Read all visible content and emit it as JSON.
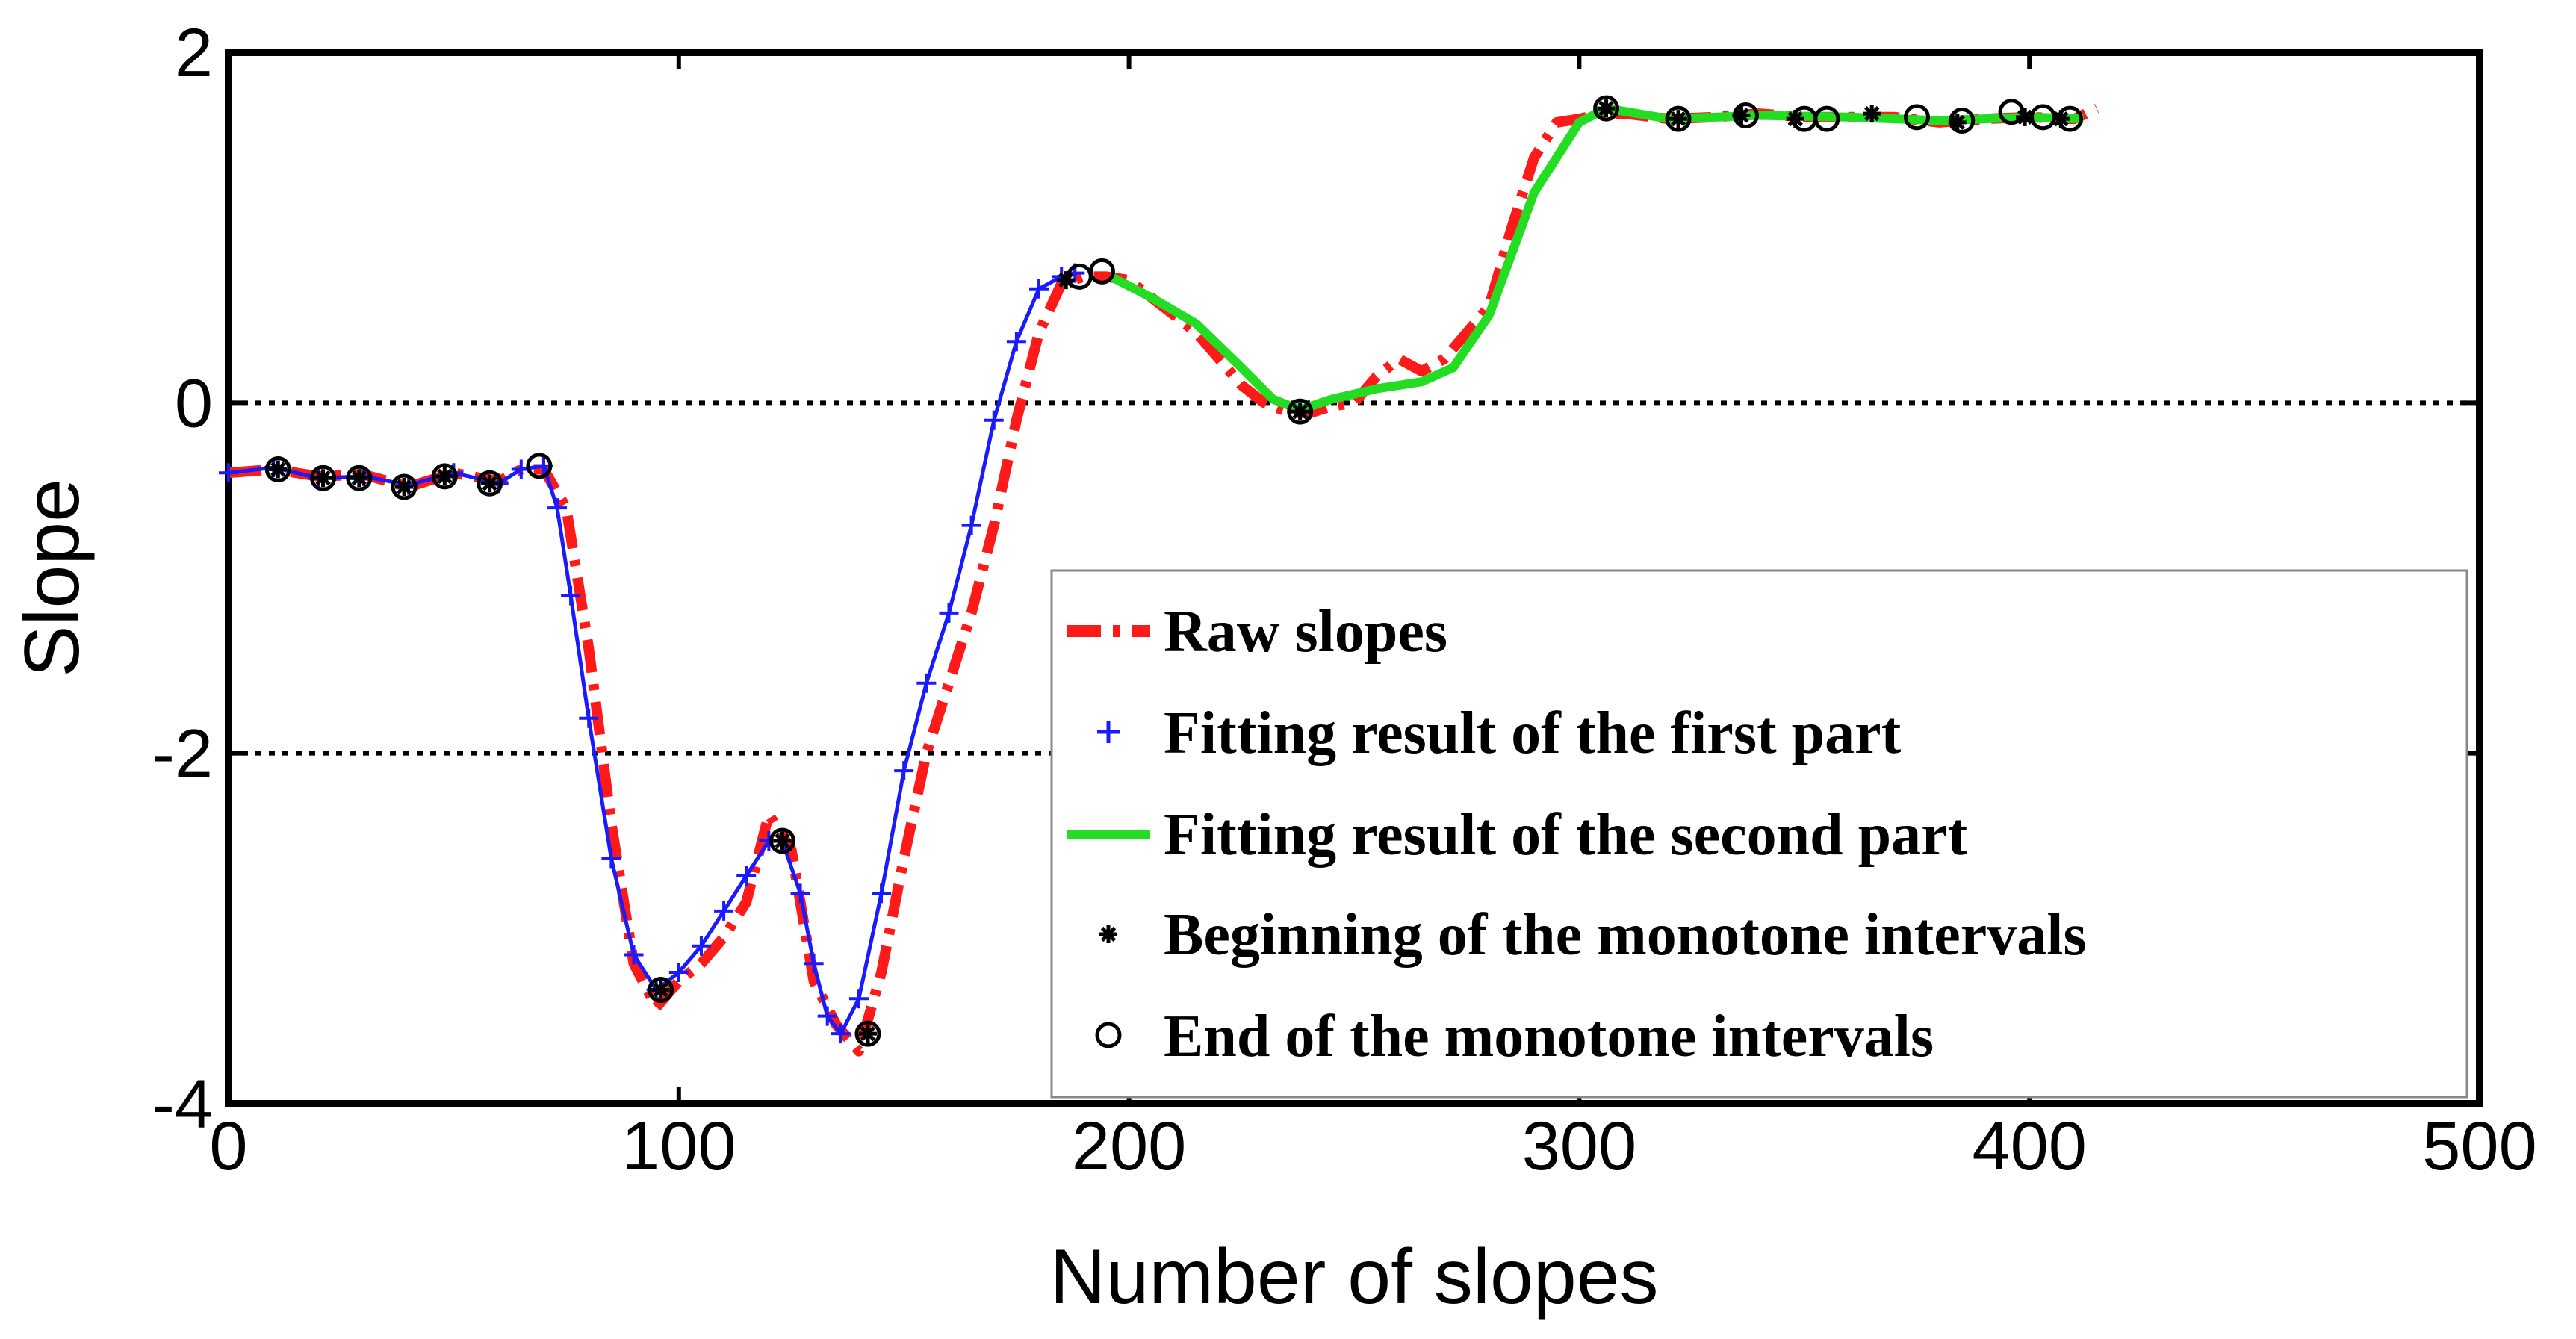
{
  "chart_data": {
    "type": "line",
    "title": "",
    "xlabel": "Number of slopes",
    "ylabel": "Slope",
    "xlim": [
      0,
      500
    ],
    "ylim": [
      -4,
      2
    ],
    "xticks": [
      0,
      100,
      200,
      300,
      400,
      500
    ],
    "xtick_labels": [
      "0",
      "100",
      "200",
      "300",
      "400",
      "500"
    ],
    "yticks": [
      2,
      0,
      -2,
      -4
    ],
    "ytick_labels": [
      "2",
      "0",
      "-2",
      "-4"
    ],
    "reference_lines": [
      0,
      -2
    ],
    "legend_position": "lower-right",
    "colors": {
      "raw": "#ff1a1a",
      "first": "#1a1aff",
      "second": "#22dd22",
      "axis": "#000000"
    },
    "series": [
      {
        "name": "Raw slopes",
        "style": "dash-dot",
        "x": [
          0,
          10,
          20,
          30,
          40,
          50,
          60,
          65,
          70,
          75,
          80,
          85,
          90,
          95,
          100,
          105,
          110,
          115,
          120,
          125,
          130,
          135,
          140,
          145,
          150,
          155,
          160,
          165,
          170,
          175,
          180,
          185,
          190,
          195,
          200,
          205,
          210,
          215,
          220,
          225,
          230,
          235,
          240,
          245,
          250,
          255,
          260,
          265,
          270,
          275,
          280,
          285,
          290,
          295,
          300,
          305,
          310,
          320,
          330,
          340,
          350,
          360,
          370,
          380,
          390,
          400,
          410,
          415
        ],
        "y": [
          -0.4,
          -0.38,
          -0.42,
          -0.41,
          -0.48,
          -0.4,
          -0.45,
          -0.38,
          -0.38,
          -0.6,
          -1.4,
          -2.4,
          -3.2,
          -3.45,
          -3.3,
          -3.2,
          -3.05,
          -2.85,
          -2.35,
          -2.55,
          -3.3,
          -3.55,
          -3.7,
          -3.25,
          -2.6,
          -2.0,
          -1.6,
          -1.2,
          -0.7,
          -0.1,
          0.4,
          0.68,
          0.72,
          0.72,
          0.7,
          0.6,
          0.5,
          0.4,
          0.25,
          0.1,
          0.0,
          -0.05,
          -0.06,
          -0.02,
          0.0,
          0.15,
          0.25,
          0.18,
          0.25,
          0.4,
          0.55,
          1.0,
          1.4,
          1.6,
          1.62,
          1.65,
          1.65,
          1.62,
          1.63,
          1.65,
          1.63,
          1.63,
          1.63,
          1.6,
          1.62,
          1.63,
          1.62,
          1.68
        ]
      },
      {
        "name": "Fitting result of the first part",
        "style": "plus-markers",
        "x": [
          0,
          10,
          20,
          30,
          40,
          50,
          60,
          65,
          70,
          73,
          76,
          80,
          85,
          90,
          95,
          100,
          105,
          110,
          115,
          120,
          123,
          127,
          130,
          133,
          136,
          140,
          145,
          150,
          155,
          160,
          165,
          170,
          175,
          180,
          185,
          188
        ],
        "y": [
          -0.4,
          -0.37,
          -0.43,
          -0.42,
          -0.47,
          -0.4,
          -0.46,
          -0.38,
          -0.36,
          -0.6,
          -1.1,
          -1.8,
          -2.6,
          -3.15,
          -3.35,
          -3.25,
          -3.1,
          -2.9,
          -2.7,
          -2.5,
          -2.5,
          -2.8,
          -3.2,
          -3.5,
          -3.6,
          -3.4,
          -2.8,
          -2.1,
          -1.6,
          -1.2,
          -0.7,
          -0.1,
          0.35,
          0.65,
          0.72,
          0.74
        ]
      },
      {
        "name": "Fitting result of the second part",
        "style": "solid",
        "x": [
          196,
          205,
          215,
          225,
          232,
          238,
          245,
          255,
          265,
          272,
          280,
          290,
          300,
          306,
          320,
          340,
          360,
          380,
          400,
          412
        ],
        "y": [
          0.72,
          0.6,
          0.45,
          0.2,
          0.02,
          -0.04,
          0.02,
          0.08,
          0.12,
          0.2,
          0.5,
          1.2,
          1.6,
          1.68,
          1.62,
          1.64,
          1.63,
          1.61,
          1.63,
          1.62
        ]
      },
      {
        "name": "Beginning of the monotone intervals",
        "style": "star-markers",
        "x": [
          11,
          21,
          29,
          39,
          48,
          58,
          96,
          123,
          142,
          186,
          238,
          306,
          322,
          336,
          348,
          365,
          384,
          399,
          407
        ],
        "y": [
          -0.38,
          -0.43,
          -0.43,
          -0.48,
          -0.42,
          -0.46,
          -3.35,
          -2.5,
          -3.6,
          0.7,
          -0.05,
          1.68,
          1.62,
          1.64,
          1.62,
          1.65,
          1.6,
          1.63,
          1.62
        ]
      },
      {
        "name": "End of the monotone intervals",
        "style": "circle-markers",
        "x": [
          11,
          21,
          29,
          39,
          48,
          58,
          69,
          96,
          123,
          142,
          189,
          194,
          238,
          306,
          322,
          337,
          350,
          355,
          375,
          385,
          396,
          403,
          409
        ],
        "y": [
          -0.38,
          -0.43,
          -0.43,
          -0.48,
          -0.42,
          -0.46,
          -0.36,
          -3.35,
          -2.5,
          -3.6,
          0.72,
          0.75,
          -0.05,
          1.68,
          1.62,
          1.64,
          1.62,
          1.62,
          1.63,
          1.61,
          1.66,
          1.63,
          1.62
        ]
      }
    ]
  }
}
